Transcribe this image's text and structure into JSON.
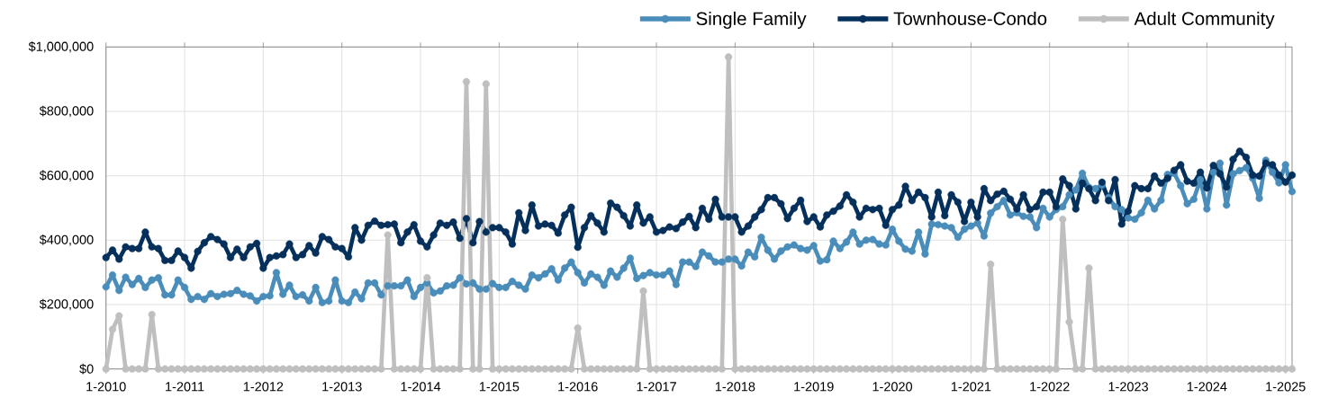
{
  "chart_data": {
    "type": "line",
    "x": [
      "2010-01",
      "2010-02",
      "2010-03",
      "2010-04",
      "2010-05",
      "2010-06",
      "2010-07",
      "2010-08",
      "2010-09",
      "2010-10",
      "2010-11",
      "2010-12",
      "2011-01",
      "2011-02",
      "2011-03",
      "2011-04",
      "2011-05",
      "2011-06",
      "2011-07",
      "2011-08",
      "2011-09",
      "2011-10",
      "2011-11",
      "2011-12",
      "2012-01",
      "2012-02",
      "2012-03",
      "2012-04",
      "2012-05",
      "2012-06",
      "2012-07",
      "2012-08",
      "2012-09",
      "2012-10",
      "2012-11",
      "2012-12",
      "2013-01",
      "2013-02",
      "2013-03",
      "2013-04",
      "2013-05",
      "2013-06",
      "2013-07",
      "2013-08",
      "2013-09",
      "2013-10",
      "2013-11",
      "2013-12",
      "2014-01",
      "2014-02",
      "2014-03",
      "2014-04",
      "2014-05",
      "2014-06",
      "2014-07",
      "2014-08",
      "2014-09",
      "2014-10",
      "2014-11",
      "2014-12",
      "2015-01",
      "2015-02",
      "2015-03",
      "2015-04",
      "2015-05",
      "2015-06",
      "2015-07",
      "2015-08",
      "2015-09",
      "2015-10",
      "2015-11",
      "2015-12",
      "2016-01",
      "2016-02",
      "2016-03",
      "2016-04",
      "2016-05",
      "2016-06",
      "2016-07",
      "2016-08",
      "2016-09",
      "2016-10",
      "2016-11",
      "2016-12",
      "2017-01",
      "2017-02",
      "2017-03",
      "2017-04",
      "2017-05",
      "2017-06",
      "2017-07",
      "2017-08",
      "2017-09",
      "2017-10",
      "2017-11",
      "2017-12",
      "2018-01",
      "2018-02",
      "2018-03",
      "2018-04",
      "2018-05",
      "2018-06",
      "2018-07",
      "2018-08",
      "2018-09",
      "2018-10",
      "2018-11",
      "2018-12",
      "2019-01",
      "2019-02",
      "2019-03",
      "2019-04",
      "2019-05",
      "2019-06",
      "2019-07",
      "2019-08",
      "2019-09",
      "2019-10",
      "2019-11",
      "2019-12",
      "2020-01",
      "2020-02",
      "2020-03",
      "2020-04",
      "2020-05",
      "2020-06",
      "2020-07",
      "2020-08",
      "2020-09",
      "2020-10",
      "2020-11",
      "2020-12",
      "2021-01",
      "2021-02",
      "2021-03",
      "2021-04",
      "2021-05",
      "2021-06",
      "2021-07",
      "2021-08",
      "2021-09",
      "2021-10",
      "2021-11",
      "2021-12",
      "2022-01",
      "2022-02",
      "2022-03",
      "2022-04",
      "2022-05",
      "2022-06",
      "2022-07",
      "2022-08",
      "2022-09",
      "2022-10",
      "2022-11",
      "2022-12",
      "2023-01",
      "2023-02",
      "2023-03",
      "2023-04",
      "2023-05",
      "2023-06",
      "2023-07",
      "2023-08",
      "2023-09",
      "2023-10",
      "2023-11",
      "2023-12",
      "2024-01",
      "2024-02",
      "2024-03",
      "2024-04",
      "2024-05",
      "2024-06",
      "2024-07",
      "2024-08",
      "2024-09",
      "2024-10",
      "2024-11",
      "2024-12",
      "2025-01",
      "2025-02"
    ],
    "xlim": [
      "2010-01",
      "2025-02"
    ],
    "xticks": [
      {
        "value": "2010-01",
        "label": "1-2010"
      },
      {
        "value": "2011-01",
        "label": "1-2011"
      },
      {
        "value": "2012-01",
        "label": "1-2012"
      },
      {
        "value": "2013-01",
        "label": "1-2013"
      },
      {
        "value": "2014-01",
        "label": "1-2014"
      },
      {
        "value": "2015-01",
        "label": "1-2015"
      },
      {
        "value": "2016-01",
        "label": "1-2016"
      },
      {
        "value": "2017-01",
        "label": "1-2017"
      },
      {
        "value": "2018-01",
        "label": "1-2018"
      },
      {
        "value": "2019-01",
        "label": "1-2019"
      },
      {
        "value": "2020-01",
        "label": "1-2020"
      },
      {
        "value": "2021-01",
        "label": "1-2021"
      },
      {
        "value": "2022-01",
        "label": "1-2022"
      },
      {
        "value": "2023-01",
        "label": "1-2023"
      },
      {
        "value": "2024-01",
        "label": "1-2024"
      },
      {
        "value": "2025-01",
        "label": "1-2025"
      }
    ],
    "ylim": [
      0,
      1000000
    ],
    "yticks": [
      {
        "value": 0,
        "label": "$0"
      },
      {
        "value": 200000,
        "label": "$200,000"
      },
      {
        "value": 400000,
        "label": "$400,000"
      },
      {
        "value": 600000,
        "label": "$600,000"
      },
      {
        "value": 800000,
        "label": "$800,000"
      },
      {
        "value": 1000000,
        "label": "$1,000,000"
      }
    ],
    "grid": true,
    "legend": "top right",
    "marker": "circle",
    "line_style": "solid",
    "series": [
      {
        "name": "Single Family",
        "color": "#4a8dba",
        "values": [
          255000,
          292000,
          244000,
          285000,
          262000,
          281000,
          253000,
          276000,
          283000,
          230000,
          230000,
          276000,
          253000,
          216000,
          225000,
          216000,
          234000,
          225000,
          232000,
          234000,
          244000,
          232000,
          227000,
          211000,
          225000,
          227000,
          299000,
          232000,
          260000,
          225000,
          230000,
          211000,
          253000,
          206000,
          211000,
          276000,
          211000,
          206000,
          239000,
          218000,
          267000,
          267000,
          230000,
          258000,
          258000,
          258000,
          276000,
          225000,
          253000,
          267000,
          236000,
          242000,
          258000,
          260000,
          283000,
          264000,
          267000,
          248000,
          248000,
          265000,
          253000,
          253000,
          272000,
          260000,
          248000,
          292000,
          283000,
          295000,
          311000,
          276000,
          313000,
          332000,
          299000,
          267000,
          295000,
          285000,
          260000,
          304000,
          285000,
          313000,
          344000,
          281000,
          290000,
          299000,
          292000,
          292000,
          304000,
          262000,
          332000,
          332000,
          318000,
          363000,
          351000,
          332000,
          332000,
          341000,
          341000,
          320000,
          363000,
          348000,
          409000,
          369000,
          341000,
          366000,
          379000,
          385000,
          374000,
          369000,
          383000,
          335000,
          339000,
          397000,
          374000,
          394000,
          425000,
          388000,
          400000,
          402000,
          388000,
          385000,
          434000,
          397000,
          372000,
          366000,
          425000,
          357000,
          450000,
          448000,
          444000,
          439000,
          409000,
          434000,
          444000,
          453000,
          413000,
          484000,
          504000,
          523000,
          478000,
          485000,
          474000,
          472000,
          439000,
          499000,
          472000,
          495000,
          504000,
          541000,
          556000,
          608000,
          564000,
          560000,
          571000,
          532000,
          504000,
          495000,
          469000,
          465000,
          485000,
          524000,
          497000,
          524000,
          604000,
          608000,
          569000,
          513000,
          527000,
          588000,
          497000,
          611000,
          639000,
          509000,
          606000,
          616000,
          625000,
          592000,
          530000,
          648000,
          611000,
          578000,
          634000,
          551000
        ]
      },
      {
        "name": "Townhouse-Condo",
        "color": "#06305c",
        "values": [
          346000,
          369000,
          341000,
          379000,
          374000,
          374000,
          425000,
          379000,
          374000,
          337000,
          337000,
          366000,
          346000,
          313000,
          365000,
          392000,
          411000,
          402000,
          388000,
          346000,
          372000,
          346000,
          379000,
          390000,
          313000,
          346000,
          351000,
          355000,
          388000,
          346000,
          355000,
          383000,
          360000,
          411000,
          402000,
          379000,
          374000,
          348000,
          439000,
          400000,
          446000,
          459000,
          446000,
          448000,
          450000,
          392000,
          425000,
          448000,
          397000,
          379000,
          416000,
          453000,
          446000,
          456000,
          406000,
          467000,
          392000,
          458000,
          425000,
          439000,
          439000,
          425000,
          388000,
          485000,
          430000,
          509000,
          444000,
          450000,
          446000,
          422000,
          478000,
          502000,
          378000,
          439000,
          476000,
          453000,
          425000,
          515000,
          502000,
          476000,
          444000,
          509000,
          453000,
          472000,
          425000,
          430000,
          441000,
          436000,
          456000,
          474000,
          439000,
          499000,
          465000,
          527000,
          472000,
          472000,
          472000,
          425000,
          444000,
          472000,
          495000,
          532000,
          532000,
          513000,
          467000,
          499000,
          524000,
          458000,
          472000,
          441000,
          478000,
          490000,
          506000,
          541000,
          518000,
          472000,
          499000,
          495000,
          499000,
          446000,
          495000,
          509000,
          567000,
          523000,
          549000,
          532000,
          472000,
          549000,
          476000,
          541000,
          518000,
          458000,
          518000,
          472000,
          560000,
          523000,
          543000,
          552000,
          527000,
          497000,
          541000,
          495000,
          504000,
          549000,
          549000,
          504000,
          590000,
          569000,
          497000,
          578000,
          560000,
          523000,
          580000,
          523000,
          588000,
          450000,
          490000,
          569000,
          560000,
          560000,
          599000,
          577000,
          592000,
          617000,
          634000,
          583000,
          577000,
          611000,
          562000,
          632000,
          606000,
          565000,
          651000,
          676000,
          657000,
          602000,
          599000,
          639000,
          634000,
          602000,
          580000,
          602000
        ]
      },
      {
        "name": "Adult Community",
        "color": "#bfbfbf",
        "values": [
          0,
          123000,
          165000,
          0,
          0,
          0,
          0,
          169000,
          0,
          0,
          0,
          0,
          0,
          0,
          0,
          0,
          0,
          0,
          0,
          0,
          0,
          0,
          0,
          0,
          0,
          0,
          0,
          0,
          0,
          0,
          0,
          0,
          0,
          0,
          0,
          0,
          0,
          0,
          0,
          0,
          0,
          0,
          0,
          416000,
          0,
          0,
          0,
          0,
          0,
          283000,
          0,
          0,
          0,
          0,
          0,
          892000,
          0,
          0,
          885000,
          0,
          0,
          0,
          0,
          0,
          0,
          0,
          0,
          0,
          0,
          0,
          0,
          0,
          127000,
          0,
          0,
          0,
          0,
          0,
          0,
          0,
          0,
          0,
          242000,
          0,
          0,
          0,
          0,
          0,
          0,
          0,
          0,
          0,
          0,
          0,
          0,
          969000,
          0,
          0,
          0,
          0,
          0,
          0,
          0,
          0,
          0,
          0,
          0,
          0,
          0,
          0,
          0,
          0,
          0,
          0,
          0,
          0,
          0,
          0,
          0,
          0,
          0,
          0,
          0,
          0,
          0,
          0,
          0,
          0,
          0,
          0,
          0,
          0,
          0,
          0,
          0,
          325000,
          0,
          0,
          0,
          0,
          0,
          0,
          0,
          0,
          0,
          0,
          465000,
          146000,
          0,
          0,
          313000,
          0,
          0,
          0,
          0,
          0,
          0,
          0,
          0,
          0,
          0,
          0,
          0,
          0,
          0,
          0,
          0,
          0,
          0,
          0,
          0,
          0,
          0,
          0,
          0,
          0,
          0,
          0,
          0,
          0,
          0,
          0
        ]
      }
    ]
  }
}
